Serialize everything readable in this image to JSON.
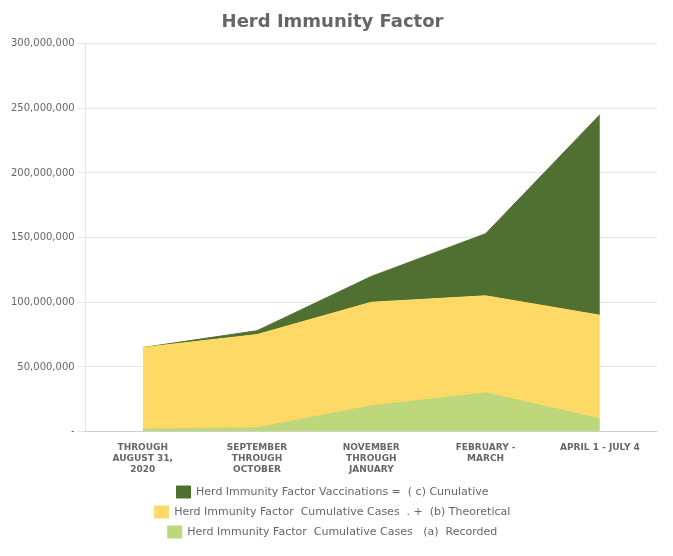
{
  "chart_data": {
    "type": "area",
    "title": "Herd Immunity Factor",
    "categories": [
      "THROUGH\nAUGUST 31,\n2020",
      "SEPTEMBER\nTHROUGH\nOCTOBER",
      "NOVEMBER\nTHROUGH\nJANUARY",
      "FEBRUARY -\nMARCH",
      "APRIL 1 - JULY 4"
    ],
    "series": [
      {
        "name": "Herd Immunity Factor  Cumulative Cases   (a)  Recorded",
        "color": "#bdd77a",
        "values": [
          2000000,
          3000000,
          20000000,
          30000000,
          10000000
        ]
      },
      {
        "name": "Herd Immunity Factor  Cumulative Cases  . +  (b) Theoretical",
        "color": "#ffd966",
        "values": [
          63000000,
          72000000,
          80000000,
          75000000,
          80000000
        ]
      },
      {
        "name": "Herd Immunity Factor Vaccinations =  ( c) Cunulative",
        "color": "#4f7030",
        "values": [
          0,
          3000000,
          20000000,
          48000000,
          155000000
        ]
      }
    ],
    "stacked": true,
    "ylim": [
      0,
      300000000
    ],
    "yticks": [
      {
        "value": 0,
        "label": "-"
      },
      {
        "value": 50000000,
        "label": "50,000,000"
      },
      {
        "value": 100000000,
        "label": "100,000,000"
      },
      {
        "value": 150000000,
        "label": "150,000,000"
      },
      {
        "value": 200000000,
        "label": "200,000,000"
      },
      {
        "value": 250000000,
        "label": "250,000,000"
      },
      {
        "value": 300000000,
        "label": "300,000,000"
      }
    ],
    "grid": true,
    "legend": "bottom"
  }
}
